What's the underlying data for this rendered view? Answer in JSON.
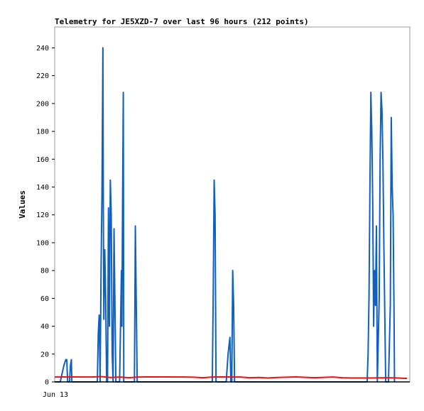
{
  "chart_data": {
    "type": "line",
    "title": "Telemetry for JE5XZD-7 over last 96 hours (212 points)",
    "ylabel": "Values",
    "xlabel": "",
    "x_ticks": [
      "Jun 13"
    ],
    "ylim": [
      0,
      255
    ],
    "y_ticks": [
      0,
      20,
      40,
      60,
      80,
      100,
      120,
      140,
      160,
      180,
      200,
      220,
      240
    ],
    "grid": false,
    "legend": "none",
    "colors": {
      "series_1": "#1060c0",
      "series_2": "#ee1111",
      "zero_line": "#000000",
      "frame": "#999999"
    },
    "series": [
      {
        "color": "#1060c0",
        "points": [
          [
            0,
            0
          ],
          [
            6,
            0
          ],
          [
            7,
            3
          ],
          [
            10,
            12
          ],
          [
            12,
            16
          ],
          [
            13,
            16
          ],
          [
            14,
            0
          ],
          [
            16,
            0
          ],
          [
            17,
            12
          ],
          [
            18,
            16
          ],
          [
            18.5,
            0
          ],
          [
            46,
            0
          ],
          [
            47,
            35
          ],
          [
            48,
            48
          ],
          [
            49,
            0
          ],
          [
            50,
            80
          ],
          [
            51,
            135
          ],
          [
            52,
            240
          ],
          [
            52.5,
            120
          ],
          [
            53,
            45
          ],
          [
            54,
            95
          ],
          [
            55,
            60
          ],
          [
            56,
            0
          ],
          [
            57,
            0
          ],
          [
            58,
            125
          ],
          [
            59,
            40
          ],
          [
            60,
            145
          ],
          [
            61,
            120
          ],
          [
            62,
            20
          ],
          [
            63,
            0
          ],
          [
            64,
            110
          ],
          [
            65,
            55
          ],
          [
            66,
            0
          ],
          [
            70,
            0
          ],
          [
            71,
            40
          ],
          [
            72,
            80
          ],
          [
            72.5,
            40
          ],
          [
            73,
            105
          ],
          [
            74,
            208
          ],
          [
            74.5,
            0
          ],
          [
            75,
            0
          ],
          [
            86,
            0
          ],
          [
            87,
            112
          ],
          [
            88,
            55
          ],
          [
            89,
            0
          ],
          [
            170,
            0
          ],
          [
            171,
            65
          ],
          [
            172,
            145
          ],
          [
            173,
            120
          ],
          [
            174,
            0
          ],
          [
            185,
            0
          ],
          [
            186,
            10
          ],
          [
            187,
            20
          ],
          [
            188,
            26
          ],
          [
            189,
            32
          ],
          [
            190,
            0
          ],
          [
            191,
            0
          ],
          [
            192,
            80
          ],
          [
            193,
            55
          ],
          [
            194,
            0
          ],
          [
            337,
            0
          ],
          [
            338,
            20
          ],
          [
            339,
            60
          ],
          [
            340,
            140
          ],
          [
            341,
            208
          ],
          [
            342,
            180
          ],
          [
            343,
            130
          ],
          [
            344,
            40
          ],
          [
            345,
            80
          ],
          [
            346,
            55
          ],
          [
            347,
            112
          ],
          [
            348,
            0
          ],
          [
            350,
            60
          ],
          [
            351,
            160
          ],
          [
            352,
            208
          ],
          [
            353,
            195
          ],
          [
            354,
            160
          ],
          [
            355,
            100
          ],
          [
            356,
            50
          ],
          [
            357,
            0
          ],
          [
            360,
            0
          ],
          [
            362,
            55
          ],
          [
            363,
            190
          ],
          [
            364,
            140
          ],
          [
            365,
            120
          ],
          [
            366,
            50
          ],
          [
            366.5,
            0
          ]
        ]
      },
      {
        "color": "#ee1111",
        "points": [
          [
            0,
            3.5
          ],
          [
            20,
            3.6
          ],
          [
            40,
            3.5
          ],
          [
            50,
            3.8
          ],
          [
            60,
            3.2
          ],
          [
            70,
            3.5
          ],
          [
            80,
            3.0
          ],
          [
            90,
            3.5
          ],
          [
            100,
            3.6
          ],
          [
            120,
            3.6
          ],
          [
            140,
            3.5
          ],
          [
            150,
            3.4
          ],
          [
            160,
            3.0
          ],
          [
            170,
            3.5
          ],
          [
            180,
            3.6
          ],
          [
            200,
            3.5
          ],
          [
            210,
            3.0
          ],
          [
            220,
            3.2
          ],
          [
            230,
            2.8
          ],
          [
            240,
            3.2
          ],
          [
            260,
            3.6
          ],
          [
            280,
            3.0
          ],
          [
            300,
            3.5
          ],
          [
            310,
            3.0
          ],
          [
            320,
            2.8
          ],
          [
            340,
            2.8
          ],
          [
            360,
            3.0
          ],
          [
            370,
            2.8
          ],
          [
            380,
            2.5
          ]
        ]
      }
    ]
  }
}
